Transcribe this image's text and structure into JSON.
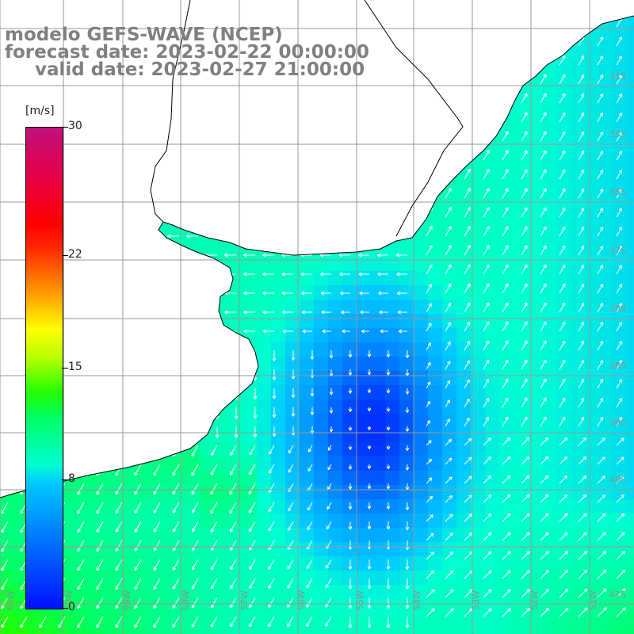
{
  "title": {
    "line1": "modelo GEFS-WAVE (NCEP)",
    "line2": "forecast date: 2023-02-22 00:00:00",
    "line3": "valid date: 2023-02-27 21:00:00"
  },
  "colorbar": {
    "unit": "[m/s]",
    "labels": [
      {
        "text": "30",
        "value": 30
      },
      {
        "text": "22",
        "value": 22
      },
      {
        "text": "15",
        "value": 15
      },
      {
        "text": "8",
        "value": 8
      },
      {
        "text": "0",
        "value": 0
      }
    ],
    "max": 30
  },
  "axes": {
    "lat_labels": [
      "31S",
      "33S",
      "35S",
      "37S",
      "38S",
      "38S",
      "39S",
      "40S",
      "41S"
    ],
    "lon_labels": [
      "61W",
      "60W",
      "59W",
      "58W",
      "57W",
      "56W",
      "55W",
      "54W",
      "53W",
      "52W",
      "51W"
    ]
  },
  "colors": {
    "land": "#ffffff",
    "grid": "#999999",
    "arrow": "#ffffff",
    "coast": "#000000"
  }
}
